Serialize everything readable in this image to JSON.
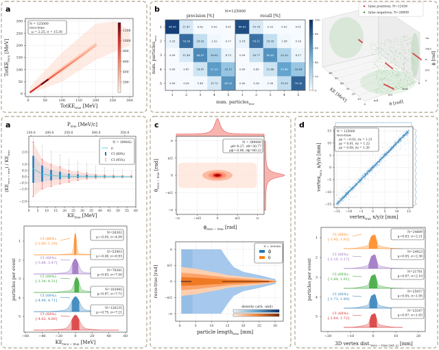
{
  "panel_labels": {
    "a_top": "a",
    "b": "b",
    "a": "a",
    "c": "c",
    "d": "d"
  },
  "colors": {
    "orange": "#ff7f0e",
    "purple": "#9467bd",
    "green": "#2ca02c",
    "blue": "#1f77b4",
    "red": "#d62728",
    "frame": "#b8b09c"
  },
  "chart_data": [
    {
      "type": "heatmap",
      "xlabel": [
        {
          "t": "TotKE"
        },
        {
          "s": "true"
        },
        {
          "t": " [MeV]"
        }
      ],
      "ylabel": [
        {
          "t": "TotKE"
        },
        {
          "s": "reco"
        },
        {
          "t": " [MeV]"
        }
      ],
      "xticks": [
        "0",
        "50",
        "100",
        "150",
        "200",
        "250",
        "300"
      ],
      "yticks": [
        "0",
        "50",
        "100",
        "150",
        "200",
        "250",
        "300"
      ],
      "xlim": [
        0,
        300
      ],
      "ylim": [
        0,
        300
      ],
      "legend": [
        "N = 125000",
        "reco-true:",
        "μ = 2.25, σ = 15.30"
      ],
      "colorbar": {
        "cmap": "Reds",
        "ticks": [
          "200",
          "400",
          "600",
          "800",
          "1000",
          "1200"
        ],
        "max": 1350
      },
      "grid": true
    },
    {
      "type": "heatmap",
      "title": "N=125000",
      "subtitles": [
        "precision [%]",
        "recall [%]"
      ],
      "xlabel": [
        {
          "t": "num. particles"
        },
        {
          "s": "true"
        }
      ],
      "ylabel": [
        {
          "t": "num. particles"
        },
        {
          "s": "reco"
        }
      ],
      "xticks": [
        "1",
        "2",
        "3",
        "4",
        "5"
      ],
      "yticks": [
        "1",
        "2",
        "3",
        "4",
        "5"
      ],
      "precision": [
        [
          "94.58",
          "11.47",
          "0.62",
          "0.02",
          "0.01"
        ],
        [
          "5.33",
          "76.56",
          "18.93",
          "2.02",
          "0.17"
        ],
        [
          "0.09",
          "11.49",
          "64.47",
          "28.92",
          "4.73"
        ],
        [
          "0.00",
          "0.47",
          "14.47",
          "57.20",
          "35.11"
        ],
        [
          "0.00",
          "0.05",
          "1.49",
          "11.72",
          "60.35"
        ]
      ],
      "recall": [
        [
          "88.63",
          "10.78",
          "0.25",
          "0.02",
          "0.01"
        ],
        [
          "5.18",
          "74.11",
          "18.39",
          "1.98",
          "0.16"
        ],
        [
          "0.09",
          "16.77",
          "60.43",
          "25.20",
          "4.17"
        ],
        [
          "0.00",
          "0.43",
          "15.46",
          "53.46",
          "33.64"
        ],
        [
          "0.00",
          "0.36",
          "1.56",
          "19.29",
          "79.36"
        ]
      ],
      "colorbar": {
        "cmap": "Blues",
        "ticks": [
          "0",
          "20",
          "40",
          "60",
          "80",
          "100"
        ],
        "range": [
          0,
          100
        ]
      }
    },
    {
      "type": "scatter",
      "legend": [
        "false positives, N=12436",
        "false negatives, N=26608"
      ],
      "series_colors": [
        "#d62728",
        "#2ca02c"
      ],
      "xlabel": "KE [MeV]",
      "ylabel": "θ [rad]",
      "zlabel": "ϕ [rad]",
      "xticks": [
        "60",
        "50",
        "40",
        "30",
        "20",
        "10",
        "0"
      ],
      "yticks": [
        "π/4",
        "π/2",
        "3π/4",
        "π"
      ],
      "zticks": [
        "0",
        "π/2",
        "π",
        "3π/2",
        "2π"
      ]
    },
    {
      "type": "line",
      "xlabel": [
        {
          "t": "KE"
        },
        {
          "s": "true"
        },
        {
          "t": " [MeV]"
        }
      ],
      "ylabel": [
        {
          "t": "(KE"
        },
        {
          "s": "reco − true"
        },
        {
          "t": ") / KE"
        },
        {
          "s": "true"
        }
      ],
      "top_xlabel": [
        {
          "t": "P"
        },
        {
          "s": "true"
        },
        {
          "t": " [MeV/c]"
        }
      ],
      "top_xticks": [
        {
          "label": "150.0",
          "ke": 1.2
        },
        {
          "label": "200.0",
          "ke": 11.5
        },
        {
          "label": "250.0",
          "ke": 22.3
        },
        {
          "label": "300.0",
          "ke": 37.7
        },
        {
          "label": "350.0",
          "ke": 53.8
        }
      ],
      "xticks": [
        "0",
        "5",
        "10",
        "15",
        "20",
        "25",
        "30",
        "35",
        "40",
        "45",
        "50",
        "55",
        "60"
      ],
      "yticks": [
        {
          "label": "−2.0",
          "v": -2
        },
        {
          "label": "−1.0",
          "v": -1
        },
        {
          "label": "−0.5",
          "v": -0.5
        },
        {
          "label": "0.0",
          "v": 0
        },
        {
          "label": "0.5",
          "v": 0.5
        },
        {
          "label": "1.0",
          "v": 1
        },
        {
          "label": "2.0",
          "v": 2
        }
      ],
      "xlim": [
        0,
        60
      ],
      "ylim": [
        -2.4,
        3.3
      ],
      "legend": [
        "N = 399042",
        "μ",
        "CI (68%)",
        "CI (95%)"
      ],
      "x": [
        2.5,
        7.5,
        12.5,
        17.5,
        22.5,
        27.5,
        32.5,
        37.5,
        42.5,
        47.5,
        52.5,
        57.5
      ],
      "mu": [
        0.62,
        0.22,
        0.1,
        0.05,
        0.03,
        0.02,
        0.01,
        0.01,
        0.0,
        0.0,
        0.0,
        -0.01
      ],
      "ci68": [
        [
          -0.5,
          1.7
        ],
        [
          -0.4,
          0.9
        ],
        [
          -0.3,
          0.55
        ],
        [
          -0.2,
          0.4
        ],
        [
          -0.15,
          0.25
        ],
        [
          -0.1,
          0.2
        ],
        [
          -0.08,
          0.15
        ],
        [
          -0.06,
          0.1
        ],
        [
          -0.05,
          0.08
        ],
        [
          -0.04,
          0.06
        ],
        [
          -0.03,
          0.04
        ],
        [
          -0.03,
          0.03
        ]
      ],
      "ci95": [
        [
          -1.6,
          2.8
        ],
        [
          -1.0,
          1.4
        ],
        [
          -0.8,
          1.0
        ],
        [
          -0.6,
          0.8
        ],
        [
          -0.45,
          0.5
        ],
        [
          -0.3,
          0.4
        ],
        [
          -0.2,
          0.3
        ],
        [
          -0.15,
          0.2
        ],
        [
          -0.12,
          0.15
        ],
        [
          -0.1,
          0.12
        ],
        [
          -0.08,
          0.09
        ],
        [
          -0.06,
          0.07
        ]
      ],
      "grid": true
    },
    {
      "type": "area",
      "xlabel": [
        {
          "t": "KE"
        },
        {
          "s": "reco − true"
        },
        {
          "t": " [MeV]"
        }
      ],
      "ylabel": "particles per event",
      "xticks": [
        "−60",
        "−40",
        "−20",
        "0",
        "20",
        "40",
        "60"
      ],
      "xlim": [
        -60,
        60
      ],
      "ci_label": "CI (68%):",
      "series": [
        {
          "name": "1",
          "ci": "[-1.60, 1.19]",
          "ci_range": [
            -1.6,
            1.19
          ],
          "stats": [
            "N=26302",
            "μ=-0.05, σ=4.09"
          ],
          "color": "#ff7f0e"
        },
        {
          "name": "2",
          "ci": "[-3.86, 3.47]",
          "ci_range": [
            -3.86,
            3.47
          ],
          "stats": [
            "N=53903",
            "μ=-0.40, σ=6.93"
          ],
          "color": "#9467bd"
        },
        {
          "name": "3",
          "ci": "[-1.34, 4.31]",
          "ci_range": [
            -1.34,
            4.31
          ],
          "stats": [
            "N=78381",
            "μ=0.83, σ=7.50"
          ],
          "color": "#2ca02c"
        },
        {
          "name": "4",
          "ci": "[-4.49, 4.71]",
          "ci_range": [
            -4.49,
            4.71
          ],
          "stats": [
            "N=103945",
            "μ=0.97, σ=7.71"
          ],
          "color": "#1f77b4"
        },
        {
          "name": "5",
          "ci": "[-4.62, 4.68]",
          "ci_range": [
            -4.62,
            4.68
          ],
          "stats": [
            "N=126235",
            "μ=-0.75, σ=7.21"
          ],
          "color": "#d62728"
        }
      ]
    },
    {
      "type": "heatmap",
      "xlabel": [
        {
          "t": "ϕ"
        },
        {
          "s": "reco − true"
        },
        {
          "t": " [rad]"
        }
      ],
      "ylabel": [
        {
          "t": "θ"
        },
        {
          "s": "reco − true"
        },
        {
          "t": " [rad]"
        }
      ],
      "xticks": [
        "−π",
        "−π/2",
        "0",
        "π/2",
        "π"
      ],
      "yticks": [
        "π",
        "π/2",
        "0",
        "−π/2",
        "−π"
      ],
      "legend": [
        "N = 389088",
        "μθ=0.27, σθ=30.77",
        "μϕ=-0.06, σϕ=80.22"
      ],
      "cmap": "Reds",
      "grid": true
    },
    {
      "type": "area",
      "xlabel": [
        {
          "t": "particle length"
        },
        {
          "s": "true"
        },
        {
          "t": " [mm]"
        }
      ],
      "ylabel": [
        {
          "t": "reco-true [rad]"
        }
      ],
      "xticks": [
        "0",
        "5",
        "10",
        "15",
        "20",
        "25",
        "30"
      ],
      "yticks": [
        "π",
        "π/2",
        "0",
        "−π/2",
        "−π"
      ],
      "legend": [
        "N = 389088",
        "ϕ",
        "θ"
      ],
      "series_colors": [
        "#1f77b4",
        "#ff7f0e"
      ],
      "colorbar_title": "density (arb. unit)",
      "x": [
        0.5,
        5,
        10,
        13,
        15,
        17,
        20,
        25,
        29,
        30,
        30.5
      ],
      "phi_halfwidth_pi": [
        1,
        1,
        1,
        1,
        0.7,
        0.45,
        0.3,
        0.2,
        0.1,
        0.08,
        0
      ],
      "theta_halfwidth_pi": [
        0.45,
        0.4,
        0.3,
        0.25,
        0.2,
        0.18,
        0.15,
        0.1,
        0.05,
        0.02,
        0
      ]
    },
    {
      "type": "scatter",
      "xlabel": [
        {
          "t": "vertex"
        },
        {
          "s": "true"
        },
        {
          "t": " x/y/z [mm]"
        }
      ],
      "ylabel": [
        {
          "t": "vertex"
        },
        {
          "s": "reco"
        },
        {
          "t": " x/y/z [mm]"
        }
      ],
      "xticks": [
        "−15",
        "−10",
        "−5",
        "0",
        "5",
        "10",
        "15"
      ],
      "yticks": [
        "−15",
        "−10",
        "−5",
        "0",
        "5",
        "10",
        "15"
      ],
      "xlim": [
        -15,
        15
      ],
      "ylim": [
        -15,
        15
      ],
      "legend": [
        "N = 125000",
        "reco-true:",
        "μx = −0.02, σx = 1.21",
        "μy = 0.01, σy = 1.22",
        "μz = 0.08, σz = 1.20"
      ],
      "color": "#1f77b4",
      "grid": true
    },
    {
      "type": "area",
      "xlabel": [
        {
          "t": "3D vertex dist."
        },
        {
          "s": "reco − true (ref: γ)"
        },
        {
          "t": " [mm]"
        }
      ],
      "ylabel": "particles per event",
      "xticks": [
        "−20",
        "−10",
        "0",
        "10",
        "20"
      ],
      "xlim": [
        -22,
        23
      ],
      "ci_label": "CI (68%):",
      "series": [
        {
          "name": "1",
          "ci": "[-1.95, 1.93]",
          "ci_range": [
            -1.95,
            1.93
          ],
          "stats": [
            "N=24889",
            "μ=0.03, σ=2.21"
          ],
          "color": "#ff7f0e"
        },
        {
          "name": "2",
          "ci": "[-2.10, 2.17]",
          "ci_range": [
            -2.1,
            2.17
          ],
          "stats": [
            "N=24923",
            "μ=0.05, σ=2.36"
          ],
          "color": "#9467bd"
        },
        {
          "name": "3",
          "ci": "[-1.84, 1.91]",
          "ci_range": [
            -1.84,
            1.91
          ],
          "stats": [
            "N=21781",
            "μ=0.07, σ=2.10"
          ],
          "color": "#2ca02c"
        },
        {
          "name": "4",
          "ci": "[-1.73, 1.80]",
          "ci_range": [
            -1.73,
            1.8
          ],
          "stats": [
            "N=25057",
            "μ=0.05, σ=1.95"
          ],
          "color": "#1f77b4"
        },
        {
          "name": "5",
          "ci": "[-1.64, 1.72]",
          "ci_range": [
            -1.64,
            1.72
          ],
          "stats": [
            "N=23247",
            "μ=0.07, σ=1.83"
          ],
          "color": "#d62728"
        }
      ]
    }
  ]
}
